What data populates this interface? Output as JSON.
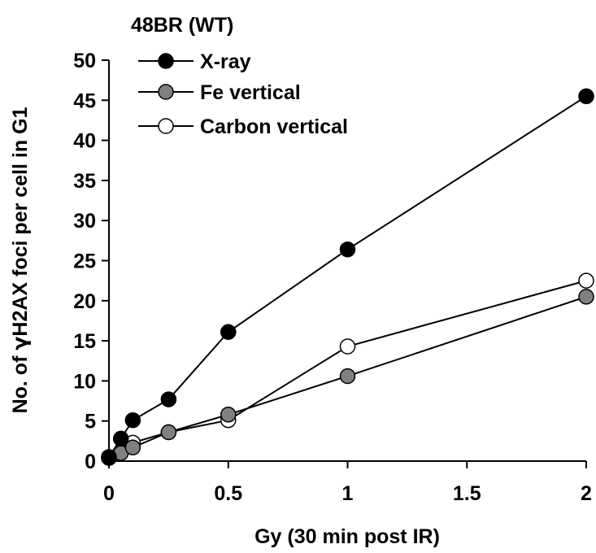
{
  "chart_data": {
    "type": "line",
    "title": "48BR (WT)",
    "xlabel": "Gy (30 min post IR)",
    "ylabel_prefix": "No. of ",
    "ylabel_greek": "γ",
    "ylabel_suffix": "H2AX foci per cell in G1",
    "xlim": [
      0,
      2
    ],
    "ylim": [
      0,
      50
    ],
    "x_ticks": [
      0,
      0.5,
      1,
      1.5,
      2
    ],
    "x_tick_labels": [
      "0",
      "0.5",
      "1",
      "1.5",
      "2"
    ],
    "y_ticks": [
      0,
      5,
      10,
      15,
      20,
      25,
      30,
      35,
      40,
      45,
      50
    ],
    "y_tick_labels": [
      "0",
      "5",
      "10",
      "15",
      "20",
      "25",
      "30",
      "35",
      "40",
      "45",
      "50"
    ],
    "grid": false,
    "legend_position": "top-left",
    "series": [
      {
        "name": "X-ray",
        "fill": "#000000",
        "x": [
          0,
          0.05,
          0.1,
          0.25,
          0.5,
          1,
          2
        ],
        "y": [
          0.5,
          2.8,
          5.1,
          7.7,
          16.1,
          26.4,
          45.5
        ]
      },
      {
        "name": "Fe vertical",
        "fill": "#808080",
        "x": [
          0,
          0.05,
          0.1,
          0.25,
          0.5,
          1,
          2
        ],
        "y": [
          0.4,
          1.0,
          1.7,
          3.6,
          5.8,
          10.6,
          20.5
        ]
      },
      {
        "name": "Carbon vertical",
        "fill": "#ffffff",
        "x": [
          0,
          0.05,
          0.1,
          0.25,
          0.5,
          1,
          2
        ],
        "y": [
          0.5,
          1.1,
          2.3,
          3.6,
          5.1,
          14.3,
          22.5
        ]
      }
    ]
  }
}
